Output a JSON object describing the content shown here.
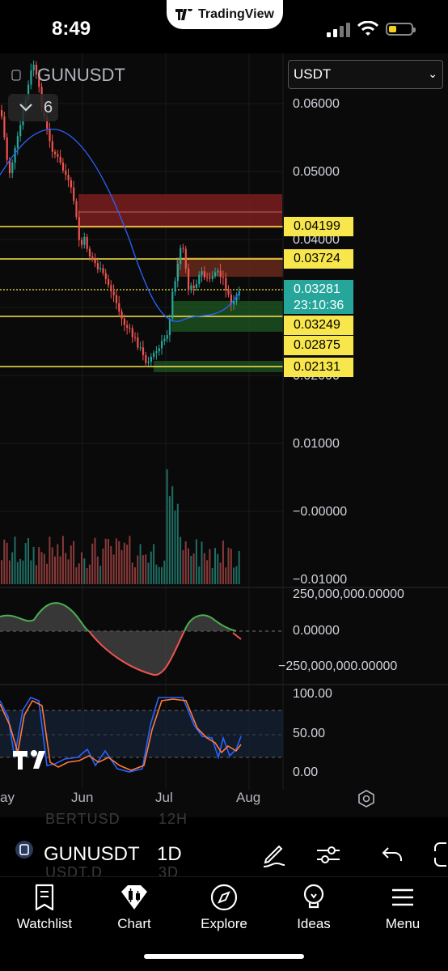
{
  "status_bar": {
    "time": "8:49",
    "island_label": "TradingView"
  },
  "chart": {
    "symbol": "GUNUSDT",
    "indicator_count": "6",
    "quote_select": "USDT",
    "price_scale": [
      "0.06000",
      "0.05000",
      "0.04000",
      "0.02000",
      "0.01000",
      "−0.00000",
      "−0.01000"
    ],
    "price_badges": [
      "0.04199",
      "0.03724",
      "0.03249",
      "0.02875",
      "0.02131"
    ],
    "last_price": {
      "price": "0.03281",
      "countdown": "23:10:36"
    },
    "macd_scale": [
      "250,000,000.00000",
      "0.00000",
      "−250,000,000.00000"
    ],
    "stoch_scale": [
      "100.00",
      "50.00",
      "0.00"
    ],
    "time_axis": [
      "ay",
      "Jun",
      "Jul",
      "Aug"
    ],
    "colors": {
      "up": "#26a69a",
      "down": "#ef5350",
      "ma": "#2962ff",
      "level": "#f7e64c",
      "badge_last": "#26a69a"
    }
  },
  "chart_data": {
    "type": "candlestick",
    "symbol": "GUNUSDT",
    "timeframe": "1D",
    "x": [
      "Jun",
      "Jul",
      "Aug"
    ],
    "horizontal_levels": [
      0.04199,
      0.03724,
      0.03249,
      0.02875,
      0.02131
    ],
    "last_price": 0.03281,
    "ylim": [
      -0.01,
      0.06
    ]
  },
  "toolbar": {
    "symbol": "GUNUSDT",
    "timeframe": "1D",
    "ghost_symbol_1": "BERTUSD",
    "ghost_tf_1": "12H",
    "ghost_symbol_2": "USDT.D",
    "ghost_tf_2": "3D"
  },
  "nav": {
    "items": [
      {
        "label": "Watchlist",
        "icon": "watchlist-icon"
      },
      {
        "label": "Chart",
        "icon": "chart-icon"
      },
      {
        "label": "Explore",
        "icon": "compass-icon"
      },
      {
        "label": "Ideas",
        "icon": "lightbulb-icon"
      },
      {
        "label": "Menu",
        "icon": "menu-icon"
      }
    ]
  }
}
